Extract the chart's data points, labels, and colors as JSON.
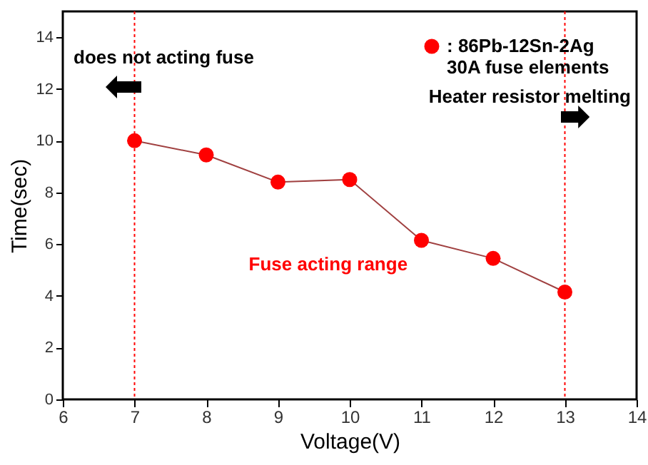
{
  "chart_data": {
    "type": "line",
    "xlabel": "Voltage(V)",
    "ylabel": "Time(sec)",
    "x": [
      7,
      8,
      9,
      10,
      11,
      12,
      13
    ],
    "series": [
      {
        "name": ": 86Pb-12Sn-2Ag\n30A fuse elements",
        "color": "#ff0000",
        "values": [
          10,
          9.45,
          8.4,
          8.5,
          6.15,
          5.45,
          4.15
        ]
      }
    ],
    "xlim": [
      6,
      14
    ],
    "xticks": [
      6,
      7,
      8,
      9,
      10,
      11,
      12,
      13,
      14
    ],
    "ylim": [
      0,
      15
    ],
    "yticks": [
      0,
      2,
      4,
      6,
      8,
      10,
      12,
      14
    ],
    "marker": "circle",
    "line_style": "solid",
    "legend": "top right",
    "grid": false,
    "ref_lines": [
      {
        "axis": "x",
        "value": 7,
        "color": "#ff0000",
        "line_style": "dotted"
      },
      {
        "axis": "x",
        "value": 13,
        "color": "#ff0000",
        "line_style": "dotted"
      }
    ],
    "annotations": [
      "does not acting fuse",
      "Heater resistor melting",
      "Fuse acting range"
    ]
  }
}
